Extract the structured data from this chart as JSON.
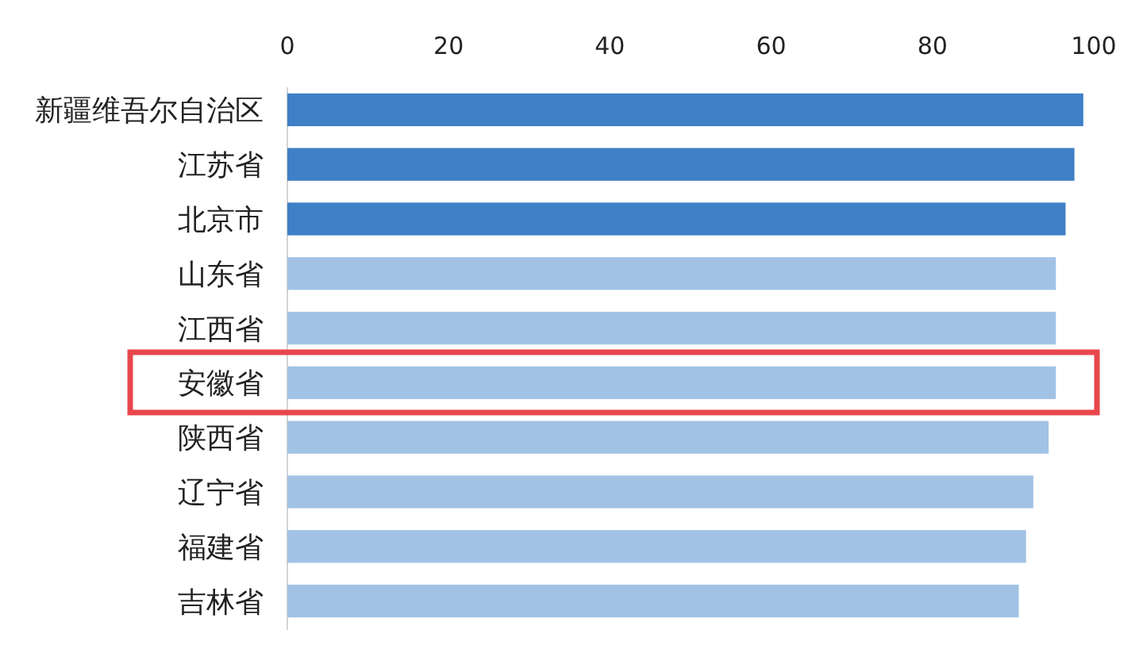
{
  "chart_data": {
    "type": "bar",
    "orientation": "horizontal",
    "categories": [
      "新疆维吾尔自治区",
      "江苏省",
      "北京市",
      "山东省",
      "江西省",
      "安徽省",
      "陕西省",
      "辽宁省",
      "福建省",
      "吉林省"
    ],
    "values": [
      98.7,
      97.6,
      96.5,
      95.3,
      95.3,
      95.3,
      94.4,
      92.5,
      91.6,
      90.7
    ],
    "colors": [
      "#3f7fc6",
      "#3f7fc6",
      "#3f7fc6",
      "#a2c2e5",
      "#a2c2e5",
      "#a2c2e5",
      "#a2c2e5",
      "#a2c2e5",
      "#a2c2e5",
      "#a2c2e5"
    ],
    "xlim": [
      0,
      100
    ],
    "xticks": [
      0,
      20,
      40,
      60,
      80,
      100
    ]
  }
}
